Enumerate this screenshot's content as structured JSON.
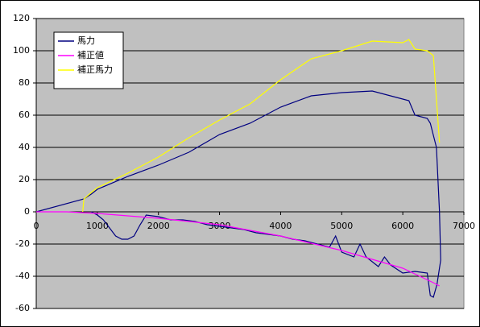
{
  "chart_data": {
    "type": "line",
    "xlim": [
      0,
      7000
    ],
    "xticks": [
      0,
      1000,
      2000,
      3000,
      4000,
      5000,
      6000,
      7000
    ],
    "ylim": [
      -60,
      120
    ],
    "yticks": [
      -60,
      -40,
      -20,
      0,
      20,
      40,
      60,
      80,
      100,
      120
    ],
    "grid": true,
    "legend": "upper-left",
    "series": [
      {
        "name": "馬力",
        "color": "#000080",
        "x": [
          0,
          780,
          900,
          1000,
          1500,
          2000,
          2500,
          3000,
          3500,
          4000,
          4500,
          5000,
          5500,
          6000,
          6100,
          6200,
          6400,
          6450,
          6550,
          6600,
          6620,
          6560,
          6500,
          6450,
          6400,
          6200,
          6000,
          5800,
          5700,
          5600,
          5400,
          5300,
          5200,
          5000,
          4900,
          4800,
          4600,
          4400,
          4200,
          4000,
          3800,
          3600,
          3400,
          3200,
          3000,
          2800,
          2600,
          2400,
          2200,
          2000,
          1800,
          1700,
          1600,
          1500,
          1400,
          1300,
          1200,
          1100,
          1000,
          900
        ],
        "values": [
          0,
          8,
          11,
          14,
          22,
          29,
          37,
          48,
          55,
          65,
          72,
          74,
          75,
          70,
          69,
          60,
          58,
          55,
          40,
          0,
          -30,
          -45,
          -53,
          -52,
          -38,
          -37,
          -38,
          -33,
          -28,
          -34,
          -28,
          -20,
          -28,
          -25,
          -15,
          -22,
          -20,
          -18,
          -17,
          -15,
          -14,
          -13,
          -11,
          -10,
          -9,
          -8,
          -6,
          -5,
          -5,
          -3,
          -2,
          -8,
          -15,
          -17,
          -17,
          -15,
          -10,
          -5,
          -2,
          0
        ]
      },
      {
        "name": "補正値",
        "color": "#ff00ff",
        "x": [
          0,
          500,
          1000,
          2000,
          3000,
          4000,
          5000,
          6000,
          6500,
          6600
        ],
        "values": [
          0,
          0,
          -1,
          -4,
          -8,
          -15,
          -24,
          -35,
          -44,
          -46
        ]
      },
      {
        "name": "補正馬力",
        "color": "#ffff00",
        "x": [
          760,
          780,
          900,
          1000,
          1500,
          2000,
          2500,
          3000,
          3500,
          4000,
          4500,
          5000,
          5500,
          6000,
          6100,
          6200,
          6400,
          6500,
          6550,
          6600
        ],
        "values": [
          0,
          8,
          12,
          15,
          24,
          34,
          46,
          57,
          67,
          82,
          95,
          100,
          106,
          105,
          107,
          101,
          100,
          97,
          70,
          43
        ]
      }
    ]
  }
}
